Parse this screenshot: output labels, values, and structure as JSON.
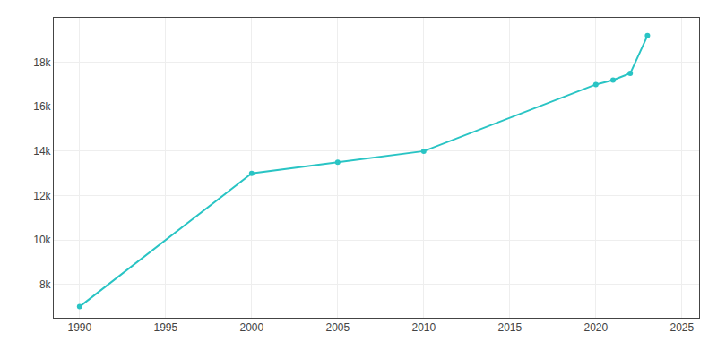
{
  "chart_data": {
    "type": "line",
    "x": [
      1990,
      2000,
      2005,
      2010,
      2020,
      2021,
      2022,
      2023
    ],
    "values": [
      7000,
      13000,
      13500,
      14000,
      17000,
      17200,
      17500,
      19200
    ],
    "color": "#29c4c4",
    "marker": "circle",
    "xlim": [
      1988.5,
      2026
    ],
    "ylim": [
      6500,
      20000
    ],
    "xticks": [
      1990,
      1995,
      2000,
      2005,
      2010,
      2015,
      2020,
      2025
    ],
    "yticks": [
      {
        "value": 8000,
        "label": "8k"
      },
      {
        "value": 10000,
        "label": "10k"
      },
      {
        "value": 12000,
        "label": "12k"
      },
      {
        "value": 14000,
        "label": "14k"
      },
      {
        "value": 16000,
        "label": "16k"
      },
      {
        "value": 18000,
        "label": "18k"
      }
    ],
    "grid": true
  }
}
